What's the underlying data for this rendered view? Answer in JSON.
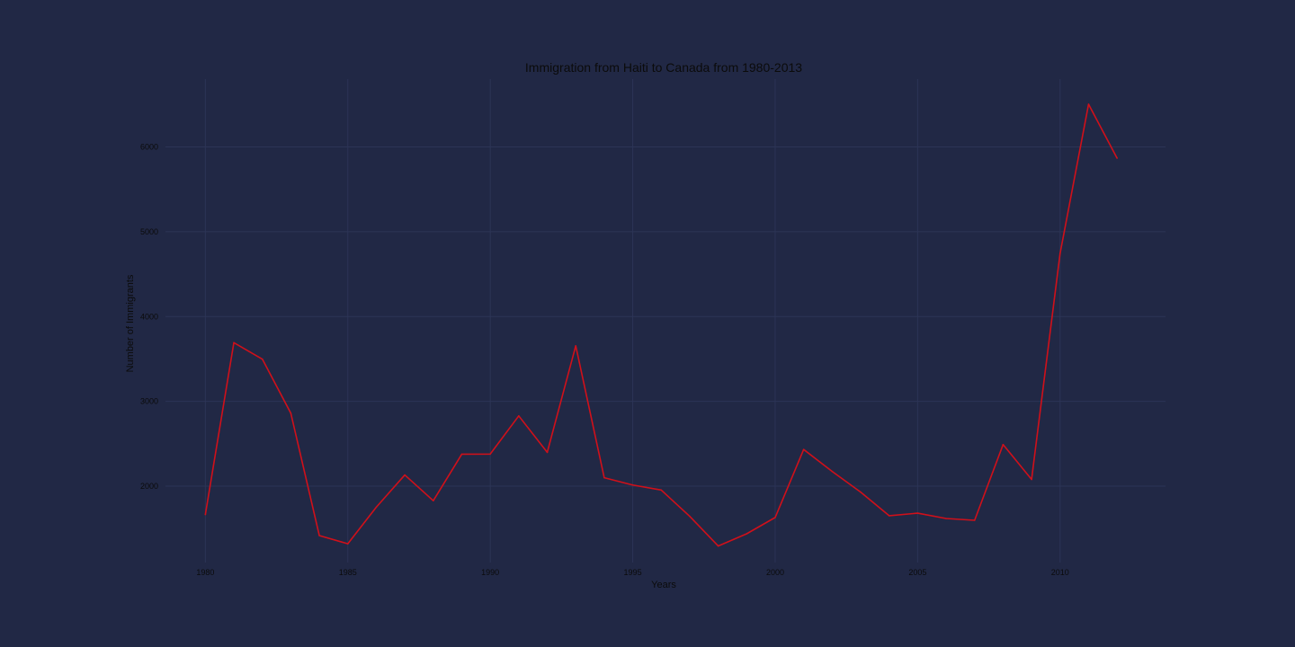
{
  "chart_data": {
    "type": "line",
    "title": "Immigration from Haiti to Canada from 1980-2013",
    "xlabel": "Years",
    "ylabel": "Number of Immigrants",
    "xlim": [
      1978.6,
      2013.7
    ],
    "ylim": [
      1100,
      6800
    ],
    "xticks": [
      1980,
      1985,
      1990,
      1995,
      2000,
      2005,
      2010
    ],
    "yticks": [
      2000,
      3000,
      4000,
      5000,
      6000
    ],
    "grid": true,
    "colors": {
      "background": "#212845",
      "grid": "#2c3456",
      "line": "#d0101a",
      "text": "#0b0b0b"
    },
    "x": [
      1980,
      1981,
      1982,
      1983,
      1984,
      1985,
      1986,
      1987,
      1988,
      1989,
      1990,
      1991,
      1992,
      1993,
      1994,
      1995,
      1996,
      1997,
      1998,
      1999,
      2000,
      2001,
      2002,
      2003,
      2004,
      2005,
      2006,
      2007,
      2008,
      2009,
      2010,
      2011,
      2012
    ],
    "values": [
      1666,
      3692,
      3498,
      2860,
      1418,
      1321,
      1753,
      2132,
      1829,
      2377,
      2379,
      2829,
      2399,
      3655,
      2100,
      2014,
      1955,
      1645,
      1295,
      1439,
      1631,
      2433,
      2174,
      1930,
      1652,
      1682,
      1619,
      1598,
      2491,
      2080,
      4744,
      6503,
      5868
    ]
  }
}
